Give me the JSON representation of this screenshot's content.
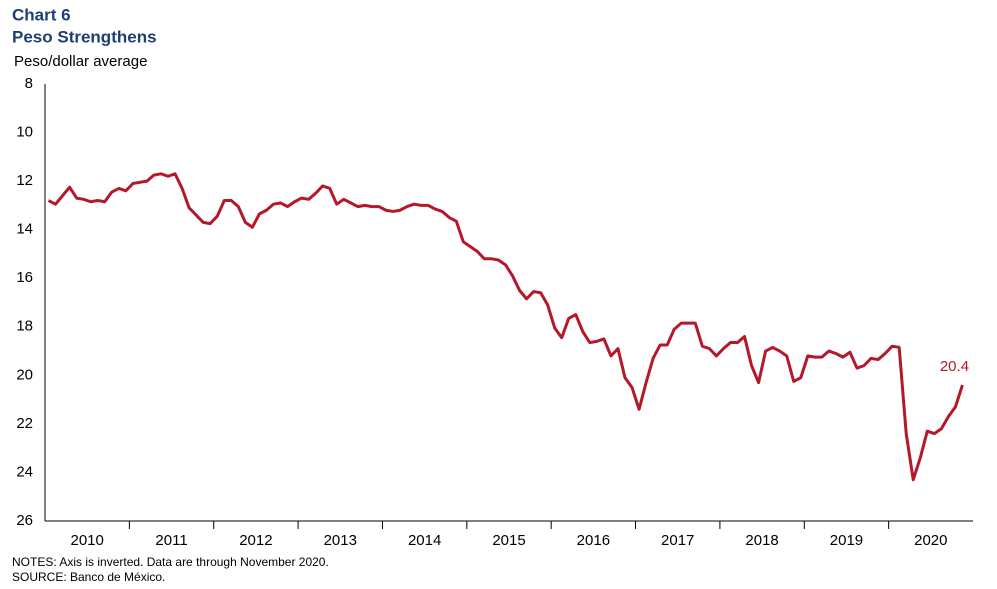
{
  "chart_data": {
    "type": "line",
    "title": "Chart 6",
    "subtitle": "Peso Strengthens",
    "y_label": "Peso/dollar average",
    "notes": [
      "NOTES: Axis is inverted. Data are through November 2020.",
      "SOURCE: Banco de México."
    ],
    "categories": [
      "2010",
      "2011",
      "2012",
      "2013",
      "2014",
      "2015",
      "2016",
      "2017",
      "2018",
      "2019",
      "2020"
    ],
    "values": [
      [
        12.8,
        12.95,
        12.6,
        12.25,
        12.7,
        12.75,
        12.85,
        12.8,
        12.85,
        12.45,
        12.3,
        12.4
      ],
      [
        12.1,
        12.05,
        12.0,
        11.75,
        11.7,
        11.8,
        11.7,
        12.3,
        13.1,
        13.4,
        13.7,
        13.75
      ],
      [
        13.45,
        12.8,
        12.8,
        13.05,
        13.7,
        13.9,
        13.35,
        13.2,
        12.95,
        12.9,
        13.05,
        12.85
      ],
      [
        12.7,
        12.75,
        12.5,
        12.2,
        12.3,
        12.95,
        12.75,
        12.9,
        13.05,
        13.0,
        13.05,
        13.05
      ],
      [
        13.2,
        13.25,
        13.2,
        13.05,
        12.95,
        13.0,
        13.0,
        13.15,
        13.25,
        13.5,
        13.65,
        14.5
      ],
      [
        14.7,
        14.9,
        15.2,
        15.2,
        15.25,
        15.45,
        15.9,
        16.5,
        16.85,
        16.55,
        16.6,
        17.1
      ],
      [
        18.05,
        18.45,
        17.65,
        17.5,
        18.2,
        18.65,
        18.6,
        18.5,
        19.2,
        18.9,
        20.1,
        20.5
      ],
      [
        21.4,
        20.3,
        19.3,
        18.75,
        18.75,
        18.1,
        17.85,
        17.85,
        17.85,
        18.8,
        18.9,
        19.2
      ],
      [
        18.9,
        18.65,
        18.65,
        18.4,
        19.6,
        20.3,
        19.0,
        18.85,
        19.0,
        19.2,
        20.25,
        20.1
      ],
      [
        19.2,
        19.25,
        19.25,
        19.0,
        19.1,
        19.25,
        19.05,
        19.7,
        19.6,
        19.3,
        19.35,
        19.1
      ],
      [
        18.8,
        18.85,
        22.4,
        24.3,
        23.4,
        22.3,
        22.4,
        22.2,
        21.7,
        21.3,
        20.4
      ]
    ],
    "color": "#b5182b",
    "ylim": [
      8,
      26
    ],
    "yticks": [
      8,
      10,
      12,
      14,
      16,
      18,
      20,
      22,
      24,
      26
    ],
    "inverted": true,
    "grid": false
  }
}
